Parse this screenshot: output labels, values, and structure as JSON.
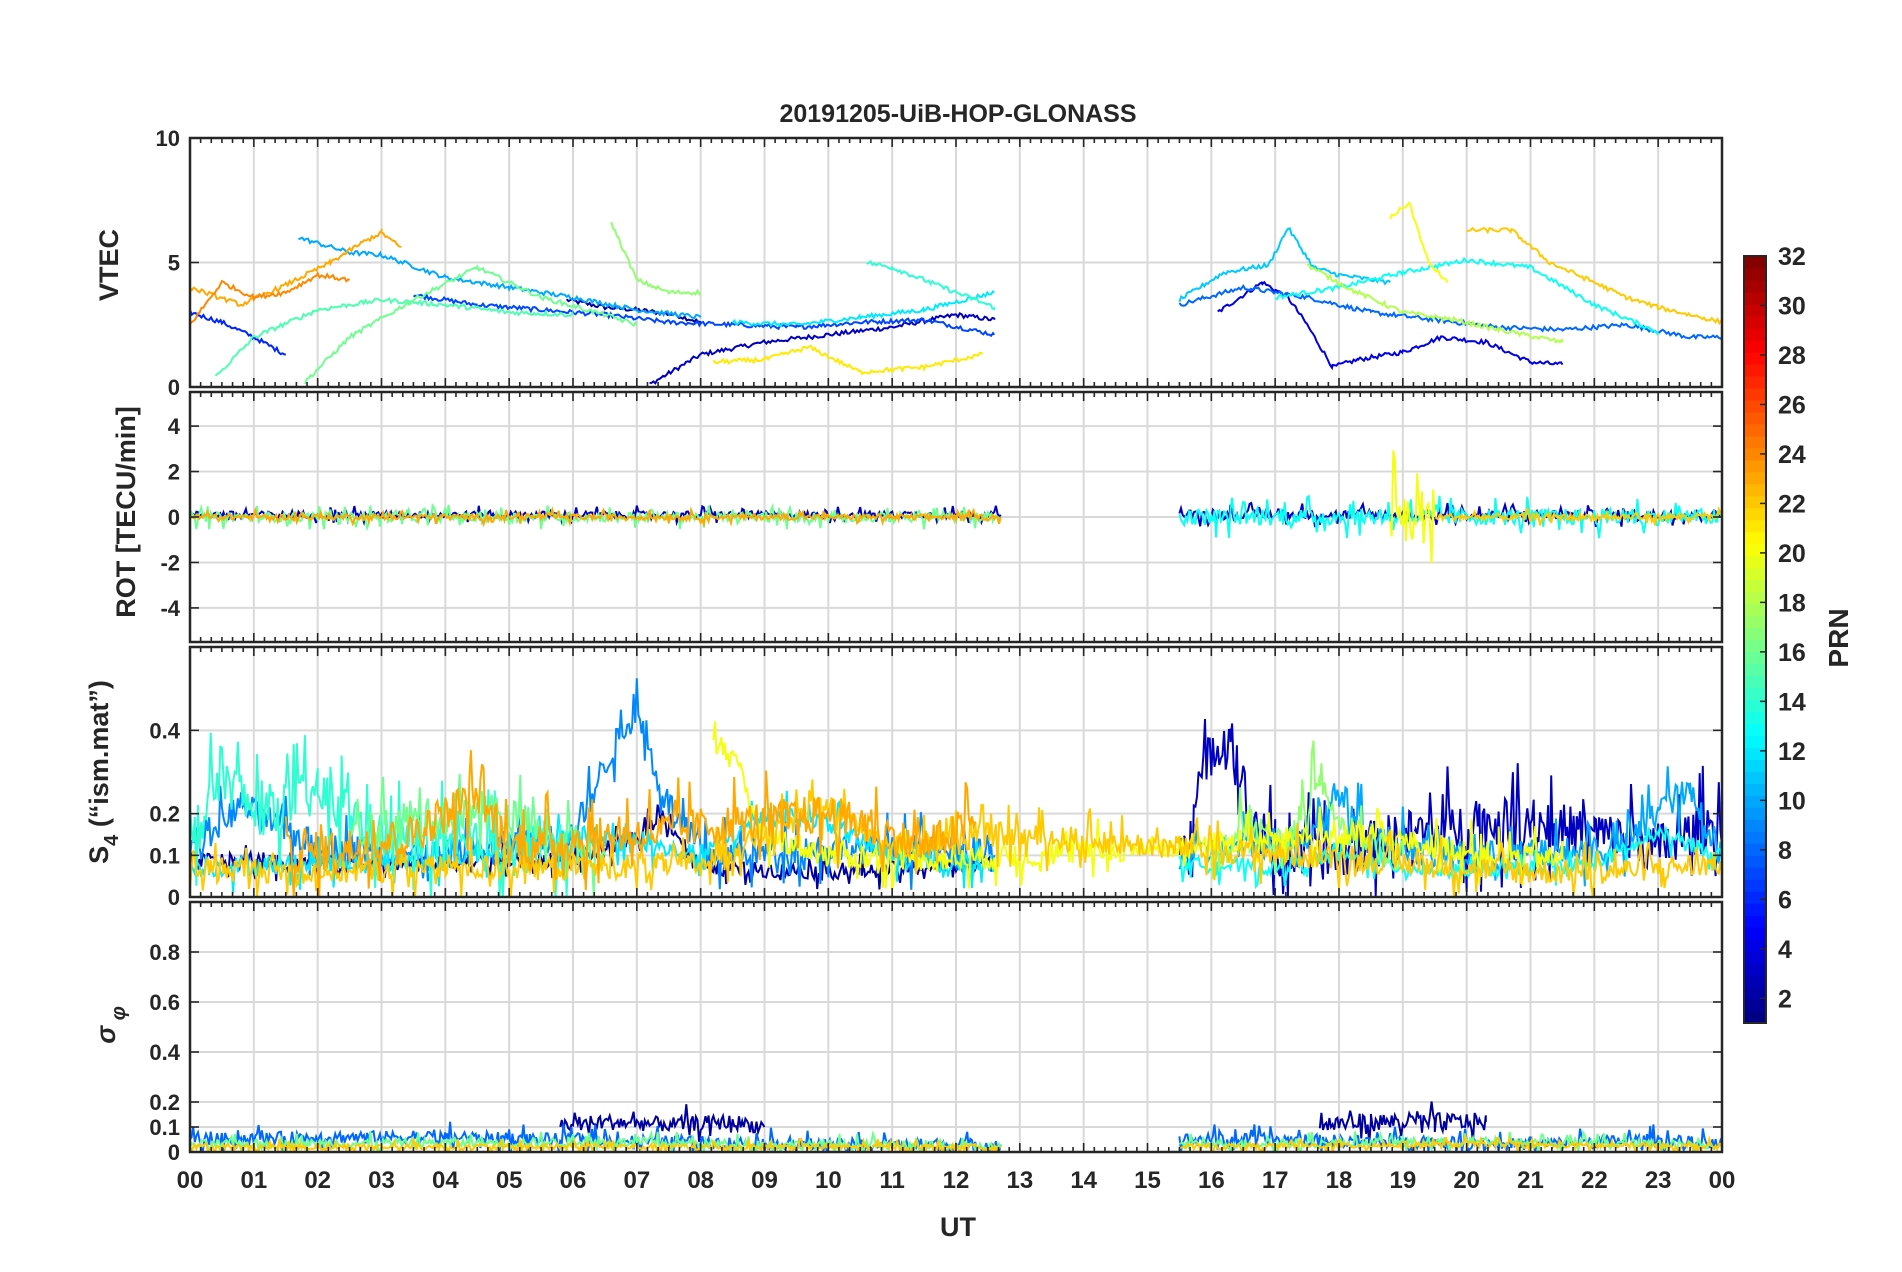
{
  "figure": {
    "title": "20191205-UiB-HOP-GLONASS",
    "xlabel": "UT",
    "colorbar_label": "PRN"
  },
  "chart_data": [
    {
      "type": "line",
      "panel": "vtec",
      "ylabel": "VTEC",
      "ylim": [
        0,
        10
      ],
      "yticks": [
        "0",
        "5",
        "10"
      ],
      "grid": true,
      "series": [
        {
          "prn": 2,
          "x": [
            5.9,
            6.5,
            7.0,
            7.6,
            8.0
          ],
          "values": [
            3.5,
            3.2,
            3.1,
            2.9,
            2.6
          ]
        },
        {
          "prn": 3,
          "x": [
            7.2,
            8.0,
            9.0,
            10.0,
            11.0,
            12.0,
            12.6
          ],
          "values": [
            0.1,
            1.3,
            1.8,
            2.1,
            2.4,
            2.9,
            2.7
          ]
        },
        {
          "prn": 4,
          "x": [
            16.1,
            16.8,
            17.2,
            17.5,
            17.9,
            18.3,
            19.0,
            19.6,
            20.3,
            21.0,
            21.5
          ],
          "values": [
            3.0,
            4.2,
            3.6,
            2.5,
            0.8,
            1.1,
            1.4,
            2.0,
            1.8,
            1.0,
            0.9
          ]
        },
        {
          "prn": 6,
          "x": [
            0.0,
            0.5,
            1.0,
            1.5
          ],
          "values": [
            3.0,
            2.6,
            2.0,
            1.3
          ]
        },
        {
          "prn": 7,
          "x": [
            3.5,
            4.5,
            5.5,
            6.5,
            7.5,
            8.5,
            9.5,
            10.5,
            11.5,
            12.6
          ],
          "values": [
            3.7,
            3.3,
            3.1,
            2.9,
            2.6,
            2.5,
            2.4,
            2.6,
            2.7,
            2.1
          ]
        },
        {
          "prn": 8,
          "x": [
            15.5,
            16.5,
            17.5,
            18.5,
            19.5,
            20.5,
            21.5,
            22.5,
            23.5,
            24.0
          ],
          "values": [
            3.3,
            4.0,
            3.6,
            3.0,
            2.7,
            2.4,
            2.3,
            2.5,
            2.0,
            2.0
          ]
        },
        {
          "prn": 10,
          "x": [
            1.7,
            2.5,
            3.0,
            4.0,
            5.0,
            6.0,
            7.0,
            8.0
          ],
          "values": [
            6.0,
            5.4,
            5.3,
            4.4,
            4.0,
            3.6,
            3.1,
            2.8
          ]
        },
        {
          "prn": 11,
          "x": [
            15.5,
            16.2,
            16.9,
            17.2,
            17.6,
            18.0,
            18.8
          ],
          "values": [
            3.5,
            4.6,
            4.9,
            6.4,
            4.8,
            4.5,
            4.2
          ]
        },
        {
          "prn": 12,
          "x": [
            8.5,
            9.5,
            10.5,
            11.5,
            12.6
          ],
          "values": [
            2.6,
            2.5,
            2.8,
            3.1,
            3.8
          ]
        },
        {
          "prn": 13,
          "x": [
            17.0,
            18.0,
            19.0,
            20.0,
            21.0,
            22.0,
            23.0
          ],
          "values": [
            3.6,
            4.0,
            4.6,
            5.1,
            4.8,
            3.3,
            2.2
          ]
        },
        {
          "prn": 14,
          "x": [
            10.6,
            11.0,
            11.6,
            12.0,
            12.6
          ],
          "values": [
            5.0,
            4.8,
            4.2,
            3.8,
            3.2
          ]
        },
        {
          "prn": 15,
          "x": [
            0.4,
            1.0,
            2.0,
            3.0,
            4.0,
            5.0,
            6.0
          ],
          "values": [
            0.4,
            2.0,
            3.1,
            3.5,
            3.3,
            3.0,
            2.9
          ]
        },
        {
          "prn": 16,
          "x": [
            1.8,
            2.5,
            3.5,
            4.5,
            5.5,
            6.5,
            7.0
          ],
          "values": [
            0.2,
            2.0,
            3.5,
            4.8,
            3.6,
            2.9,
            2.5
          ]
        },
        {
          "prn": 17,
          "x": [
            6.6,
            7.0,
            7.5,
            8.0
          ],
          "values": [
            6.6,
            4.3,
            3.8,
            3.8
          ]
        },
        {
          "prn": 18,
          "x": [
            17.5,
            18.2,
            19.0,
            19.8,
            20.5,
            21.5
          ],
          "values": [
            4.9,
            3.9,
            3.0,
            2.7,
            2.3,
            1.8
          ]
        },
        {
          "prn": 20,
          "x": [
            18.8,
            19.1,
            19.4,
            19.7
          ],
          "values": [
            6.8,
            7.4,
            5.0,
            4.2
          ]
        },
        {
          "prn": 21,
          "x": [
            8.2,
            9.0,
            9.7,
            10.5,
            11.5,
            12.4
          ],
          "values": [
            1.0,
            1.1,
            1.6,
            0.6,
            0.8,
            1.3
          ]
        },
        {
          "prn": 22,
          "x": [
            20.0,
            20.7,
            21.3,
            22.0,
            22.5,
            23.0,
            24.0
          ],
          "values": [
            6.3,
            6.3,
            5.0,
            4.2,
            3.6,
            3.2,
            2.6
          ]
        },
        {
          "prn": 23,
          "x": [
            0.0,
            0.8,
            1.5,
            2.2,
            2.7,
            3.0,
            3.3
          ],
          "values": [
            4.0,
            3.3,
            4.1,
            5.0,
            5.8,
            6.2,
            5.6
          ]
        },
        {
          "prn": 24,
          "x": [
            0.0,
            0.5,
            1.0,
            1.5,
            2.0,
            2.5
          ],
          "values": [
            2.5,
            4.2,
            3.6,
            3.8,
            4.5,
            4.3
          ]
        }
      ]
    },
    {
      "type": "line",
      "panel": "rot",
      "ylabel": "ROT [TECU/min]",
      "ylim": [
        -5.5,
        5.5
      ],
      "yticks": [
        "-4",
        "-2",
        "0",
        "2",
        "4"
      ],
      "grid": true,
      "series": [
        {
          "prn": 3,
          "x": [
            0.0,
            12.7
          ],
          "values": [
            0.1,
            0.1
          ],
          "spread": 0.25
        },
        {
          "prn": 16,
          "x": [
            0.0,
            12.7
          ],
          "values": [
            0.0,
            0.0
          ],
          "spread": 0.35
        },
        {
          "prn": 23,
          "x": [
            0.0,
            12.7
          ],
          "values": [
            0.0,
            0.0
          ],
          "spread": 0.2
        },
        {
          "prn": 3,
          "x": [
            15.5,
            24.0
          ],
          "values": [
            0.1,
            0.1
          ],
          "spread": 0.35
        },
        {
          "prn": 13,
          "x": [
            15.5,
            24.0
          ],
          "values": [
            0.0,
            0.0
          ],
          "spread": 0.6
        },
        {
          "prn": 20,
          "x": [
            18.8,
            19.5
          ],
          "values": [
            0.0,
            0.0
          ],
          "spread": 2.2
        },
        {
          "prn": 22,
          "x": [
            19.5,
            24.0
          ],
          "values": [
            0.0,
            0.0
          ],
          "spread": 0.25
        }
      ]
    },
    {
      "type": "line",
      "panel": "s4",
      "ylabel": "S4 (\"ism.mat\")",
      "ylim": [
        0,
        0.6
      ],
      "yticks": [
        "0",
        "0.1",
        "0.2",
        "0.4"
      ],
      "grid": true,
      "series": [
        {
          "prn": 2,
          "x": [
            0.0,
            2.0,
            4.0,
            6.0,
            7.0,
            7.4,
            8.0,
            10.0,
            12.6
          ],
          "values": [
            0.09,
            0.08,
            0.08,
            0.09,
            0.14,
            0.2,
            0.07,
            0.06,
            0.08
          ],
          "spread": 0.03
        },
        {
          "prn": 3,
          "x": [
            15.5,
            16.0,
            16.3,
            16.6,
            17.0,
            18.0,
            19.0,
            20.0,
            21.0,
            22.0,
            23.0,
            24.0
          ],
          "values": [
            0.1,
            0.35,
            0.4,
            0.2,
            0.1,
            0.1,
            0.15,
            0.17,
            0.18,
            0.15,
            0.12,
            0.18
          ],
          "spread": 0.1
        },
        {
          "prn": 9,
          "x": [
            0.0,
            0.8,
            2.0,
            4.0,
            6.0,
            6.6,
            7.0,
            7.4,
            8.0,
            10.0,
            12.6
          ],
          "values": [
            0.12,
            0.22,
            0.12,
            0.1,
            0.15,
            0.35,
            0.45,
            0.25,
            0.1,
            0.12,
            0.1
          ],
          "spread": 0.06
        },
        {
          "prn": 10,
          "x": [
            15.5,
            16.5,
            17.5,
            18.0,
            18.5,
            19.5,
            21.0,
            22.5,
            23.0,
            23.5,
            24.0
          ],
          "values": [
            0.1,
            0.12,
            0.15,
            0.25,
            0.15,
            0.1,
            0.1,
            0.12,
            0.22,
            0.25,
            0.1
          ],
          "spread": 0.06
        },
        {
          "prn": 12,
          "x": [
            0.0,
            2.0,
            4.0,
            6.0,
            8.0,
            9.0,
            10.0,
            11.0,
            12.6
          ],
          "values": [
            0.07,
            0.08,
            0.09,
            0.15,
            0.1,
            0.2,
            0.18,
            0.09,
            0.08
          ],
          "spread": 0.04
        },
        {
          "prn": 13,
          "x": [
            15.5,
            17.0,
            18.0,
            19.0,
            20.0,
            21.0,
            22.0,
            23.0,
            24.0
          ],
          "values": [
            0.08,
            0.07,
            0.1,
            0.07,
            0.06,
            0.07,
            0.08,
            0.15,
            0.1
          ],
          "spread": 0.03
        },
        {
          "prn": 14,
          "x": [
            0.0,
            0.5,
            1.0,
            2.0,
            2.5,
            3.0,
            4.0,
            5.0,
            6.0
          ],
          "values": [
            0.12,
            0.3,
            0.2,
            0.25,
            0.2,
            0.15,
            0.12,
            0.12,
            0.1
          ],
          "spread": 0.1
        },
        {
          "prn": 16,
          "x": [
            2.5,
            3.5,
            4.5,
            5.5,
            6.5
          ],
          "values": [
            0.14,
            0.18,
            0.22,
            0.16,
            0.1
          ],
          "spread": 0.08
        },
        {
          "prn": 17,
          "x": [
            16.0,
            16.6,
            17.2,
            17.7,
            18.0,
            19.0
          ],
          "values": [
            0.08,
            0.18,
            0.12,
            0.3,
            0.16,
            0.1
          ],
          "spread": 0.07
        },
        {
          "prn": 20,
          "x": [
            8.2,
            8.6,
            9.0,
            10.0,
            12.0,
            18.5,
            19.5,
            20.5,
            21.5
          ],
          "values": [
            0.4,
            0.3,
            0.15,
            0.1,
            0.09,
            0.15,
            0.12,
            0.1,
            0.09
          ],
          "spread": 0.05
        },
        {
          "prn": 22,
          "x": [
            0.0,
            2.0,
            4.0,
            6.0,
            8.0,
            10.0,
            11.0,
            12.6,
            21.0,
            22.0,
            24.0
          ],
          "values": [
            0.07,
            0.06,
            0.07,
            0.07,
            0.08,
            0.22,
            0.12,
            0.15,
            0.06,
            0.06,
            0.08
          ],
          "spread": 0.05
        },
        {
          "prn": 23,
          "x": [
            1.5,
            2.5,
            3.5,
            4.5,
            5.0,
            10.0,
            11.5,
            12.3
          ],
          "values": [
            0.1,
            0.12,
            0.15,
            0.25,
            0.12,
            0.2,
            0.12,
            0.18
          ],
          "spread": 0.08
        }
      ]
    },
    {
      "type": "line",
      "panel": "sigma_phi",
      "ylabel": "σ φ",
      "ylim": [
        0,
        1
      ],
      "yticks": [
        "0",
        "0.1",
        "0.2",
        "0.4",
        "0.6",
        "0.8"
      ],
      "grid": true,
      "series": [
        {
          "prn": 2,
          "x": [
            5.8,
            6.5,
            7.5,
            8.5,
            9.0
          ],
          "values": [
            0.11,
            0.12,
            0.11,
            0.12,
            0.1
          ],
          "spread": 0.05
        },
        {
          "prn": 2,
          "x": [
            17.7,
            18.5,
            19.5,
            20.3
          ],
          "values": [
            0.11,
            0.12,
            0.12,
            0.12
          ],
          "spread": 0.06
        },
        {
          "prn": 8,
          "x": [
            0.0,
            2.0,
            4.0,
            6.0,
            8.0,
            10.0,
            12.7
          ],
          "values": [
            0.05,
            0.06,
            0.06,
            0.05,
            0.04,
            0.03,
            0.03
          ],
          "spread": 0.04
        },
        {
          "prn": 8,
          "x": [
            15.5,
            17.0,
            19.0,
            21.0,
            23.0,
            24.0
          ],
          "values": [
            0.05,
            0.05,
            0.04,
            0.03,
            0.05,
            0.03
          ],
          "spread": 0.04
        },
        {
          "prn": 16,
          "x": [
            0.0,
            6.0,
            12.7
          ],
          "values": [
            0.03,
            0.04,
            0.02
          ],
          "spread": 0.03
        },
        {
          "prn": 16,
          "x": [
            15.5,
            20.0,
            24.0
          ],
          "values": [
            0.03,
            0.04,
            0.03
          ],
          "spread": 0.03
        },
        {
          "prn": 22,
          "x": [
            0.0,
            6.0,
            12.7
          ],
          "values": [
            0.02,
            0.02,
            0.02
          ],
          "spread": 0.02
        },
        {
          "prn": 22,
          "x": [
            15.5,
            20.0,
            24.0
          ],
          "values": [
            0.02,
            0.03,
            0.02
          ],
          "spread": 0.02
        }
      ]
    }
  ],
  "xaxis": {
    "xlim": [
      0,
      24
    ],
    "ticklabels": [
      "00",
      "01",
      "02",
      "03",
      "04",
      "05",
      "06",
      "07",
      "08",
      "09",
      "10",
      "11",
      "12",
      "13",
      "14",
      "15",
      "16",
      "17",
      "18",
      "19",
      "20",
      "21",
      "22",
      "23",
      "00"
    ]
  },
  "colorbar": {
    "colormap": "jet",
    "range": [
      1,
      32
    ],
    "ticks": [
      "2",
      "4",
      "6",
      "8",
      "10",
      "12",
      "14",
      "16",
      "18",
      "20",
      "22",
      "24",
      "26",
      "28",
      "30",
      "32"
    ]
  }
}
